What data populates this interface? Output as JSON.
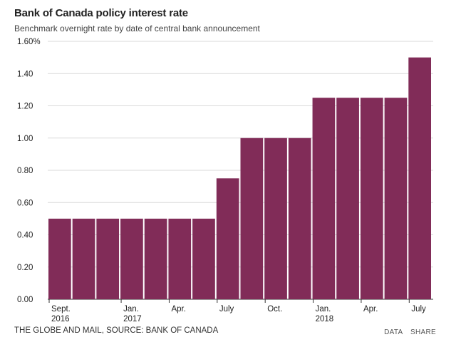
{
  "title": "Bank of Canada policy interest rate",
  "subtitle": "Benchmark overnight rate by date of central bank announcement",
  "chart_data": {
    "type": "bar",
    "title": "Bank of Canada policy interest rate",
    "subtitle": "Benchmark overnight rate by date of central bank announcement",
    "values": [
      0.5,
      0.5,
      0.5,
      0.5,
      0.5,
      0.5,
      0.5,
      0.75,
      1.0,
      1.0,
      1.0,
      1.25,
      1.25,
      1.25,
      1.25,
      1.5
    ],
    "ylim": [
      0,
      1.6
    ],
    "yticks": [
      {
        "value": 0.0,
        "label": "0.00"
      },
      {
        "value": 0.2,
        "label": "0.20"
      },
      {
        "value": 0.4,
        "label": "0.40"
      },
      {
        "value": 0.6,
        "label": "0.60"
      },
      {
        "value": 0.8,
        "label": "0.80"
      },
      {
        "value": 1.0,
        "label": "1.00"
      },
      {
        "value": 1.2,
        "label": "1.20"
      },
      {
        "value": 1.4,
        "label": "1.40"
      },
      {
        "value": 1.6,
        "label": "1.60%"
      }
    ],
    "xticks": [
      {
        "index": 0,
        "label": "Sept.",
        "label2": "2016"
      },
      {
        "index": 3,
        "label": "Jan.",
        "label2": "2017"
      },
      {
        "index": 5,
        "label": "Apr.",
        "label2": ""
      },
      {
        "index": 7,
        "label": "July",
        "label2": ""
      },
      {
        "index": 9,
        "label": "Oct.",
        "label2": ""
      },
      {
        "index": 11,
        "label": "Jan.",
        "label2": "2018"
      },
      {
        "index": 13,
        "label": "Apr.",
        "label2": ""
      },
      {
        "index": 15,
        "label": "July",
        "label2": ""
      }
    ],
    "grid": true,
    "bar_color": "#812c58"
  },
  "footer": {
    "source": "THE GLOBE AND MAIL, SOURCE: BANK OF CANADA",
    "data_label": "DATA",
    "share_label": "SHARE"
  }
}
